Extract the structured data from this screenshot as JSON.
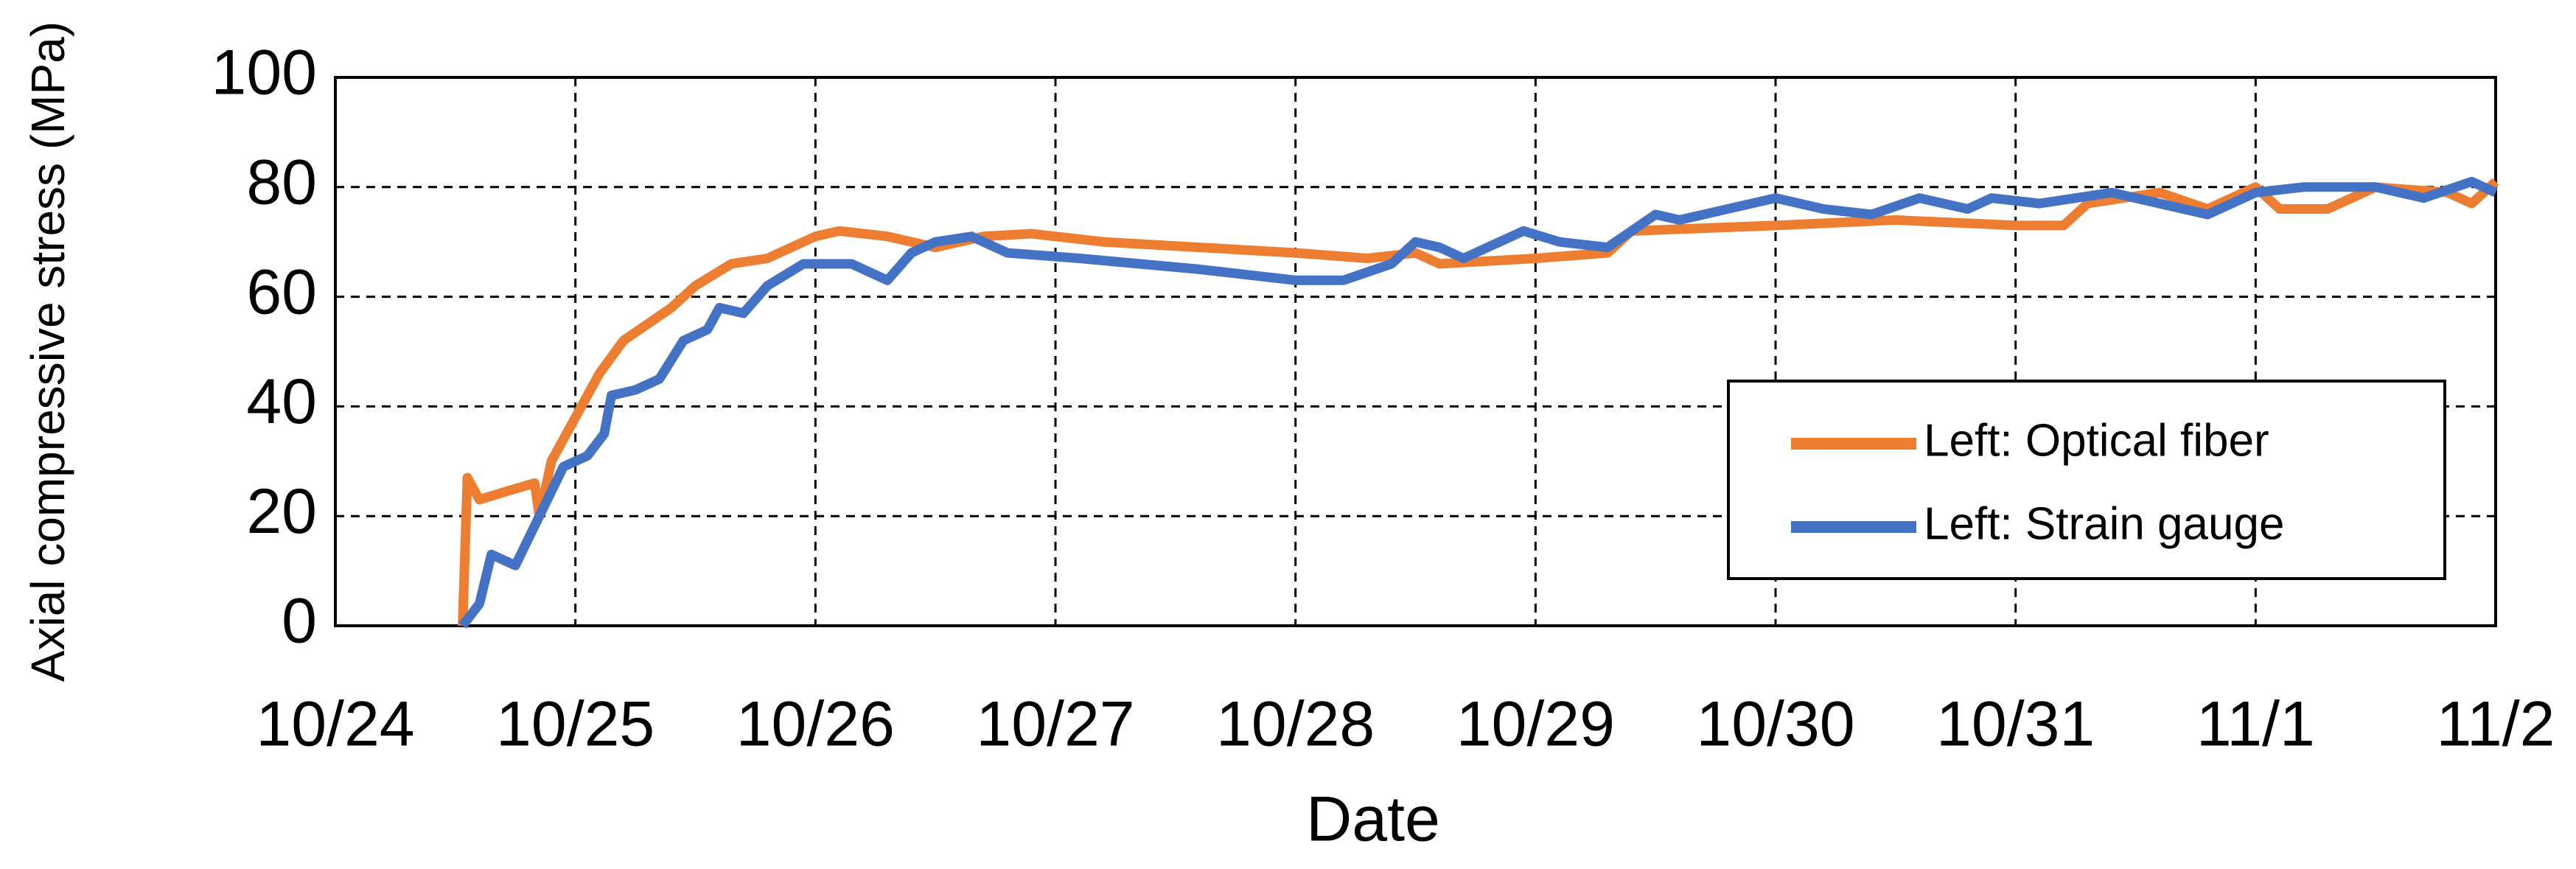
{
  "chart_data": {
    "type": "line",
    "xlabel": "Date",
    "ylabel": "Axial compressive stress (MPa)",
    "xlim": [
      0,
      9
    ],
    "xticks": [
      {
        "value": 0,
        "label": "10/24"
      },
      {
        "value": 1,
        "label": "10/25"
      },
      {
        "value": 2,
        "label": "10/26"
      },
      {
        "value": 3,
        "label": "10/27"
      },
      {
        "value": 4,
        "label": "10/28"
      },
      {
        "value": 5,
        "label": "10/29"
      },
      {
        "value": 6,
        "label": "10/30"
      },
      {
        "value": 7,
        "label": "10/31"
      },
      {
        "value": 8,
        "label": "11/1"
      },
      {
        "value": 9,
        "label": "11/2"
      }
    ],
    "ylim": [
      0,
      100
    ],
    "yticks": [
      0,
      20,
      40,
      60,
      80,
      100
    ],
    "grid": true,
    "legend": "lower right",
    "series": [
      {
        "name": "Left: Optical fiber",
        "color": "#ed7d31",
        "x": [
          0.53,
          0.55,
          0.6,
          0.75,
          0.83,
          0.85,
          0.9,
          1.0,
          1.1,
          1.2,
          1.3,
          1.4,
          1.5,
          1.65,
          1.8,
          2.0,
          2.1,
          2.3,
          2.5,
          2.7,
          2.9,
          3.2,
          3.6,
          4.0,
          4.3,
          4.5,
          4.6,
          5.0,
          5.3,
          5.4,
          6.0,
          6.5,
          7.0,
          7.2,
          7.3,
          7.6,
          7.8,
          8.0,
          8.1,
          8.3,
          8.5,
          8.8,
          8.9,
          9.0
        ],
        "values": [
          0,
          27,
          23,
          25,
          26,
          20,
          30,
          38,
          46,
          52,
          55,
          58,
          62,
          66,
          67,
          71,
          72,
          71,
          69,
          71,
          71.5,
          70,
          69,
          68,
          67,
          68,
          66,
          67,
          68,
          72,
          73,
          74,
          73,
          73,
          77,
          79,
          76,
          80,
          76,
          76,
          80,
          79,
          77,
          81
        ]
      },
      {
        "name": "Left: Strain gauge",
        "color": "#4472c4",
        "x": [
          0.53,
          0.6,
          0.65,
          0.75,
          0.85,
          0.95,
          1.05,
          1.12,
          1.15,
          1.25,
          1.35,
          1.45,
          1.55,
          1.6,
          1.7,
          1.8,
          1.95,
          2.15,
          2.3,
          2.4,
          2.5,
          2.65,
          2.8,
          3.1,
          3.6,
          4.0,
          4.2,
          4.4,
          4.5,
          4.6,
          4.7,
          4.8,
          4.95,
          5.1,
          5.3,
          5.4,
          5.5,
          5.6,
          5.8,
          6.0,
          6.2,
          6.4,
          6.6,
          6.8,
          6.9,
          7.1,
          7.4,
          7.6,
          7.8,
          8.0,
          8.2,
          8.5,
          8.7,
          8.9,
          9.0
        ],
        "values": [
          0,
          4,
          13,
          11,
          20,
          29,
          31,
          35,
          42,
          43,
          45,
          52,
          54,
          58,
          57,
          62,
          66,
          66,
          63,
          68,
          70,
          71,
          68,
          67,
          65,
          63,
          63,
          66,
          70,
          69,
          67,
          69,
          72,
          70,
          69,
          72,
          75,
          74,
          76,
          78,
          76,
          75,
          78,
          76,
          78,
          77,
          79,
          77,
          75,
          79,
          80,
          80,
          78,
          81,
          79
        ]
      }
    ]
  }
}
